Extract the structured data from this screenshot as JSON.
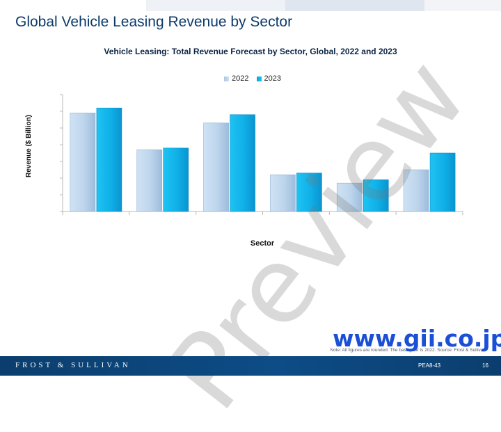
{
  "header": {
    "title": "Global Vehicle Leasing Revenue by Sector"
  },
  "colors": {
    "navy": "#0b3e6e",
    "series_2022": "#b8d3ec",
    "series_2023": "#14b4ea",
    "watermark_url": "#1a4fd6"
  },
  "chart_data": {
    "type": "bar",
    "title": "Vehicle Leasing: Total Revenue Forecast by Sector, Global, 2022 and 2023",
    "xlabel": "Sector",
    "ylabel": "Revenue ($ Billion)",
    "categories": [
      "",
      "",
      "",
      "",
      "",
      ""
    ],
    "series": [
      {
        "name": "2022",
        "values": [
          5.9,
          3.7,
          5.3,
          2.2,
          1.7,
          2.5
        ]
      },
      {
        "name": "2023",
        "values": [
          6.2,
          3.8,
          5.8,
          2.3,
          1.9,
          3.5
        ]
      }
    ],
    "ylim": [
      0,
      7
    ],
    "grid": false,
    "legend": "top-center",
    "tick_labels_visible": false
  },
  "note": "Note: All figures are rounded. The base year is 2022. Source: Frost & Sullivan",
  "watermark": {
    "preview": "Preview",
    "url": "www.gii.co.jp"
  },
  "footer": {
    "brand": "FROST & SULLIVAN",
    "code": "PEA8-43",
    "page": "16"
  }
}
